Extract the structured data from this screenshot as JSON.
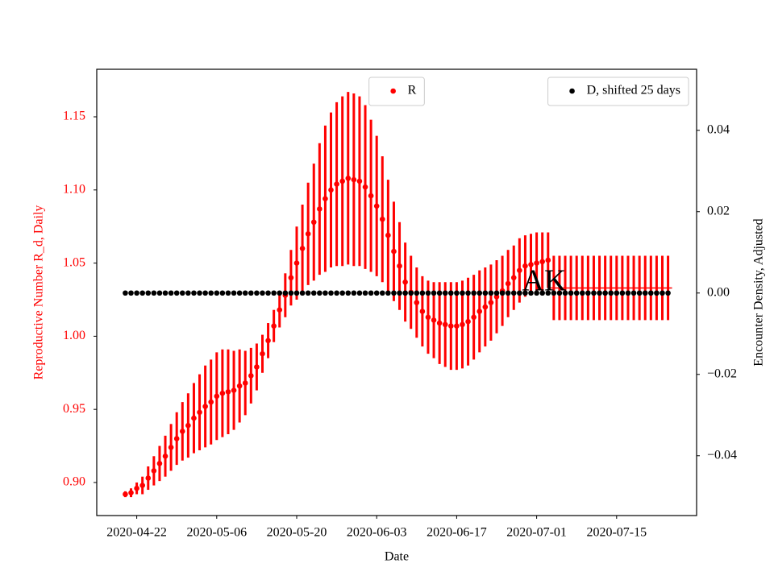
{
  "chart_data": {
    "type": "errorbar",
    "xlabel": "Date",
    "ylabel": "Reproductive Number R_d, Daily",
    "y2label": "Encounter Density, Adjusted",
    "annotation": "AK",
    "x": [
      "2020-04-20",
      "2020-04-21",
      "2020-04-22",
      "2020-04-23",
      "2020-04-24",
      "2020-04-25",
      "2020-04-26",
      "2020-04-27",
      "2020-04-28",
      "2020-04-29",
      "2020-04-30",
      "2020-05-01",
      "2020-05-02",
      "2020-05-03",
      "2020-05-04",
      "2020-05-05",
      "2020-05-06",
      "2020-05-07",
      "2020-05-08",
      "2020-05-09",
      "2020-05-10",
      "2020-05-11",
      "2020-05-12",
      "2020-05-13",
      "2020-05-14",
      "2020-05-15",
      "2020-05-16",
      "2020-05-17",
      "2020-05-18",
      "2020-05-19",
      "2020-05-20",
      "2020-05-21",
      "2020-05-22",
      "2020-05-23",
      "2020-05-24",
      "2020-05-25",
      "2020-05-26",
      "2020-05-27",
      "2020-05-28",
      "2020-05-29",
      "2020-05-30",
      "2020-05-31",
      "2020-06-01",
      "2020-06-02",
      "2020-06-03",
      "2020-06-04",
      "2020-06-05",
      "2020-06-06",
      "2020-06-07",
      "2020-06-08",
      "2020-06-09",
      "2020-06-10",
      "2020-06-11",
      "2020-06-12",
      "2020-06-13",
      "2020-06-14",
      "2020-06-15",
      "2020-06-16",
      "2020-06-17",
      "2020-06-18",
      "2020-06-19",
      "2020-06-20",
      "2020-06-21",
      "2020-06-22",
      "2020-06-23",
      "2020-06-24",
      "2020-06-25",
      "2020-06-26",
      "2020-06-27",
      "2020-06-28",
      "2020-06-29",
      "2020-06-30",
      "2020-07-01",
      "2020-07-02",
      "2020-07-03",
      "2020-07-04",
      "2020-07-05",
      "2020-07-06",
      "2020-07-07",
      "2020-07-08",
      "2020-07-09",
      "2020-07-10",
      "2020-07-11",
      "2020-07-12",
      "2020-07-13",
      "2020-07-14",
      "2020-07-15",
      "2020-07-16",
      "2020-07-17",
      "2020-07-18",
      "2020-07-19",
      "2020-07-20",
      "2020-07-21",
      "2020-07-22",
      "2020-07-23",
      "2020-07-24"
    ],
    "xlim": [
      "2020-04-15",
      "2020-07-29"
    ],
    "xticks": [
      "2020-04-22",
      "2020-05-06",
      "2020-05-20",
      "2020-06-03",
      "2020-06-17",
      "2020-07-01",
      "2020-07-15"
    ],
    "ylim": [
      0.8774,
      1.1825
    ],
    "yticks": [
      {
        "value": 0.9,
        "label": "0.90"
      },
      0.95,
      {
        "value": 1.0,
        "label": "1.00"
      },
      1.05,
      {
        "value": 1.1,
        "label": "1.10"
      },
      1.15
    ],
    "y2lim": [
      -0.0547,
      0.055
    ],
    "y2ticks": [
      {
        "value": -0.04,
        "label": "−0.04"
      },
      {
        "value": -0.02,
        "label": "−0.02"
      },
      {
        "value": 0,
        "label": "0.00"
      },
      0.02,
      0.04
    ],
    "series": [
      {
        "name": "R",
        "color": "#ff0000",
        "style": "markers",
        "legend_loc": "upper center",
        "values": [
          0.892,
          0.893,
          0.896,
          0.898,
          0.903,
          0.908,
          0.913,
          0.918,
          0.924,
          0.93,
          0.935,
          0.939,
          0.944,
          0.948,
          0.952,
          0.955,
          0.959,
          0.961,
          0.962,
          0.963,
          0.966,
          0.968,
          0.973,
          0.979,
          0.988,
          0.997,
          1.007,
          1.018,
          1.028,
          1.04,
          1.05,
          1.06,
          1.07,
          1.078,
          1.087,
          1.094,
          1.1,
          1.104,
          1.106,
          1.108,
          1.107,
          1.106,
          1.102,
          1.096,
          1.089,
          1.08,
          1.069,
          1.058,
          1.048,
          1.037,
          1.03,
          1.023,
          1.017,
          1.013,
          1.011,
          1.009,
          1.008,
          1.007,
          1.007,
          1.008,
          1.01,
          1.013,
          1.017,
          1.02,
          1.023,
          1.027,
          1.031,
          1.036,
          1.04,
          1.045,
          1.048,
          1.049,
          1.05,
          1.051,
          1.052,
          null,
          null,
          null,
          null,
          null,
          null,
          null,
          null,
          null,
          null,
          null,
          null,
          null,
          null,
          null,
          null,
          null,
          null,
          null,
          null,
          null
        ],
        "err": [
          0.002,
          0.003,
          0.004,
          0.006,
          0.008,
          0.01,
          0.012,
          0.014,
          0.016,
          0.018,
          0.02,
          0.022,
          0.024,
          0.026,
          0.028,
          0.029,
          0.03,
          0.03,
          0.029,
          0.027,
          0.025,
          0.022,
          0.019,
          0.016,
          0.013,
          0.012,
          0.011,
          0.012,
          0.015,
          0.019,
          0.025,
          0.03,
          0.035,
          0.04,
          0.045,
          0.05,
          0.053,
          0.056,
          0.058,
          0.059,
          0.059,
          0.058,
          0.056,
          0.052,
          0.048,
          0.043,
          0.038,
          0.034,
          0.03,
          0.027,
          0.025,
          0.024,
          0.024,
          0.025,
          0.026,
          0.028,
          0.029,
          0.03,
          0.03,
          0.03,
          0.03,
          0.029,
          0.028,
          0.027,
          0.026,
          0.025,
          0.024,
          0.023,
          0.022,
          0.022,
          0.021,
          0.021,
          0.021,
          0.02,
          0.019,
          null,
          null,
          null,
          null,
          null,
          null,
          null,
          null,
          null,
          null,
          null,
          null,
          null,
          null,
          null,
          null,
          null,
          null,
          null,
          null,
          null
        ]
      },
      {
        "color": "#ff0000",
        "style": "line",
        "values": [
          null,
          null,
          null,
          null,
          null,
          null,
          null,
          null,
          null,
          null,
          null,
          null,
          null,
          null,
          null,
          null,
          null,
          null,
          null,
          null,
          null,
          null,
          null,
          null,
          null,
          null,
          null,
          null,
          null,
          null,
          null,
          null,
          null,
          null,
          null,
          null,
          null,
          null,
          null,
          null,
          null,
          null,
          null,
          null,
          null,
          null,
          null,
          null,
          null,
          null,
          null,
          null,
          null,
          null,
          null,
          null,
          null,
          null,
          null,
          null,
          null,
          null,
          null,
          null,
          null,
          null,
          null,
          null,
          null,
          null,
          null,
          null,
          null,
          null,
          null,
          1.033,
          1.033,
          1.033,
          1.033,
          1.033,
          1.033,
          1.033,
          1.033,
          1.033,
          1.033,
          1.033,
          1.033,
          1.033,
          1.033,
          1.033,
          1.033,
          1.033,
          1.033,
          1.033,
          1.033,
          1.033
        ],
        "err": [
          null,
          null,
          null,
          null,
          null,
          null,
          null,
          null,
          null,
          null,
          null,
          null,
          null,
          null,
          null,
          null,
          null,
          null,
          null,
          null,
          null,
          null,
          null,
          null,
          null,
          null,
          null,
          null,
          null,
          null,
          null,
          null,
          null,
          null,
          null,
          null,
          null,
          null,
          null,
          null,
          null,
          null,
          null,
          null,
          null,
          null,
          null,
          null,
          null,
          null,
          null,
          null,
          null,
          null,
          null,
          null,
          null,
          null,
          null,
          null,
          null,
          null,
          null,
          null,
          null,
          null,
          null,
          null,
          null,
          null,
          null,
          null,
          null,
          null,
          null,
          0.022,
          0.022,
          0.022,
          0.022,
          0.022,
          0.022,
          0.022,
          0.022,
          0.022,
          0.022,
          0.022,
          0.022,
          0.022,
          0.022,
          0.022,
          0.022,
          0.022,
          0.022,
          0.022,
          0.022,
          0.022
        ]
      },
      {
        "name": "D, shifted 25 days",
        "color": "#000000",
        "style": "markers",
        "axis": "y2",
        "legend_loc": "upper right",
        "values": [
          0,
          0,
          0,
          0,
          0,
          0,
          0,
          0,
          0,
          0,
          0,
          0,
          0,
          0,
          0,
          0,
          0,
          0,
          0,
          0,
          0,
          0,
          0,
          0,
          0,
          0,
          0,
          0,
          0,
          0,
          0,
          0,
          0,
          0,
          0,
          0,
          0,
          0,
          0,
          0,
          0,
          0,
          0,
          0,
          0,
          0,
          0,
          0,
          0,
          0,
          0,
          0,
          0,
          0,
          0,
          0,
          0,
          0,
          0,
          0,
          0,
          0,
          0,
          0,
          0,
          0,
          0,
          0,
          0,
          0,
          0,
          0,
          0,
          0,
          0,
          0,
          0,
          0,
          0,
          0,
          0,
          0,
          0,
          0,
          0,
          0,
          0,
          0,
          0,
          0,
          0,
          0,
          0,
          0,
          0,
          0
        ]
      }
    ]
  }
}
